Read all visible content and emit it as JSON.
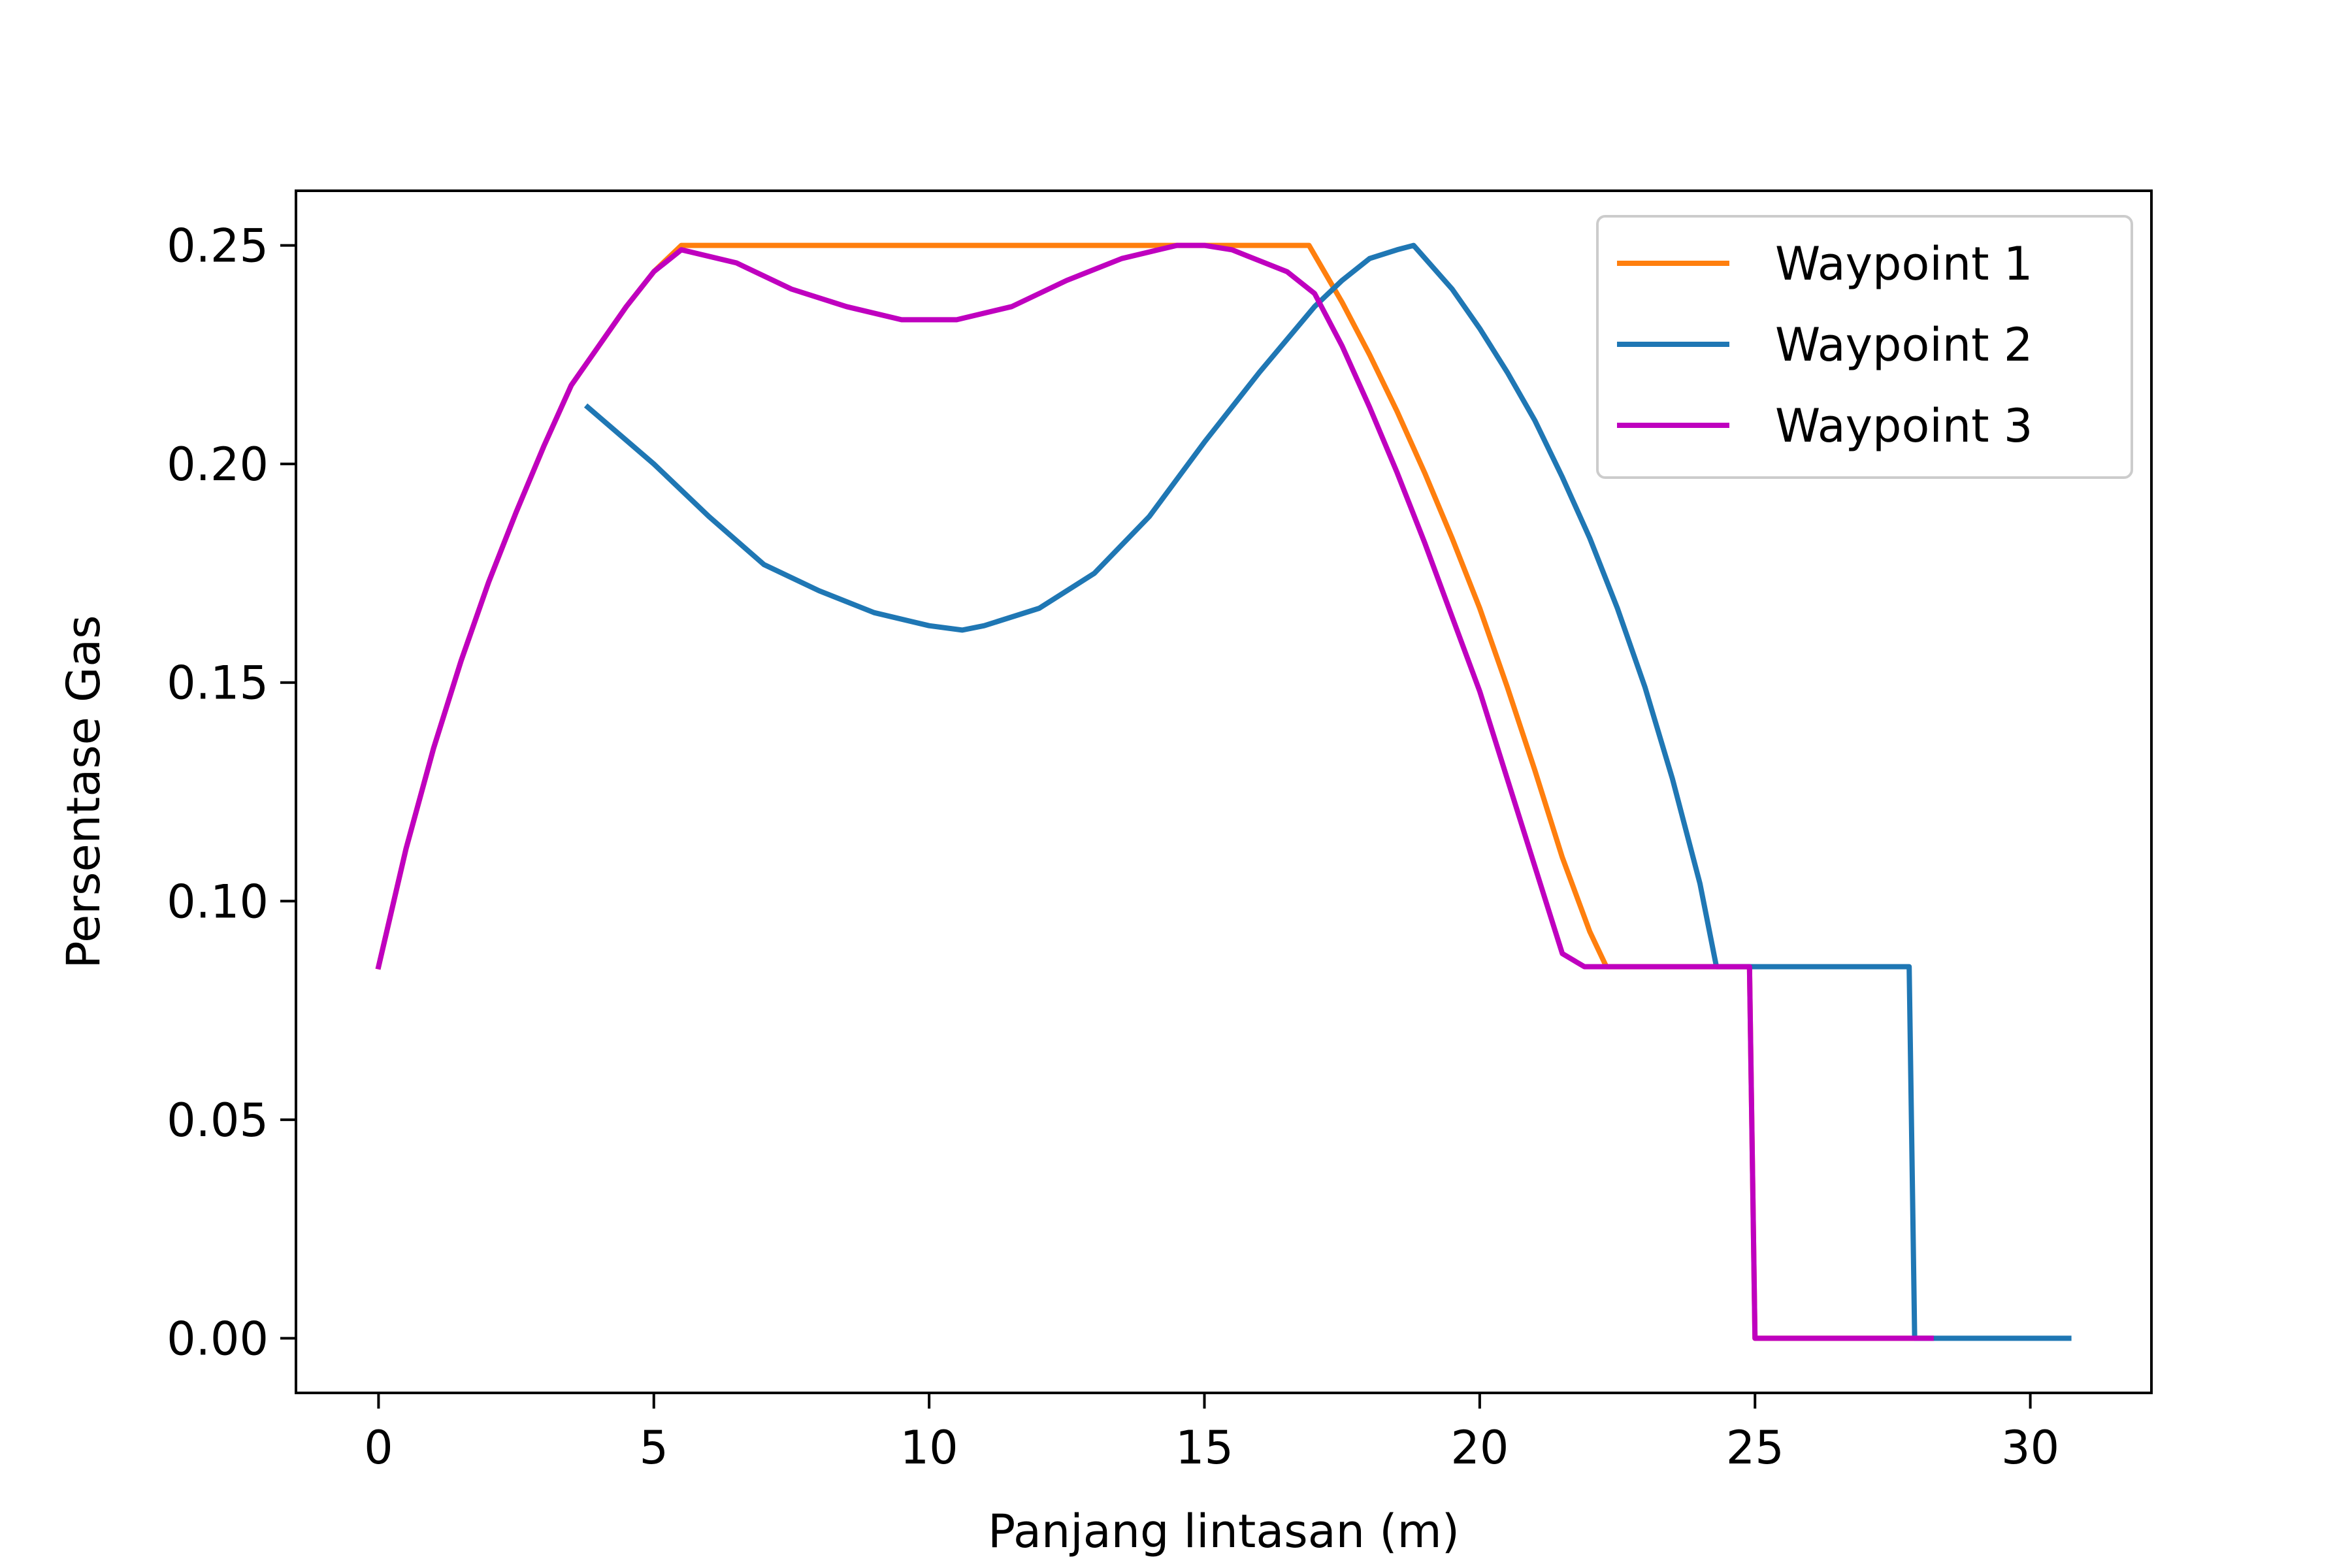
{
  "chart_data": {
    "type": "line",
    "title": "",
    "xlabel": "Panjang lintasan (m)",
    "ylabel": "Persentase Gas",
    "xlim": [
      -1.5,
      32.2
    ],
    "ylim": [
      -0.0125,
      0.2625
    ],
    "xticks": [
      0,
      5,
      10,
      15,
      20,
      25,
      30
    ],
    "xtick_labels": [
      "0",
      "5",
      "10",
      "15",
      "20",
      "25",
      "30"
    ],
    "yticks": [
      0.0,
      0.05,
      0.1,
      0.15,
      0.2,
      0.25
    ],
    "ytick_labels": [
      "0.00",
      "0.05",
      "0.10",
      "0.15",
      "0.20",
      "0.25"
    ],
    "grid": false,
    "legend_position": "top-right",
    "series": [
      {
        "name": "Waypoint 1",
        "color": "#ff7f0e",
        "x": [
          0,
          0.5,
          1.0,
          1.5,
          2.0,
          2.5,
          3.0,
          3.5,
          4.0,
          4.5,
          5.0,
          5.5,
          7,
          9,
          11,
          13,
          15,
          16.9,
          17.5,
          18.0,
          18.5,
          19.0,
          19.5,
          20.0,
          20.5,
          21.0,
          21.5,
          22.0,
          22.3,
          22.4,
          24.9,
          25.0,
          28.2
        ],
        "y": [
          0.085,
          0.112,
          0.135,
          0.155,
          0.173,
          0.189,
          0.204,
          0.218,
          0.227,
          0.236,
          0.244,
          0.25,
          0.25,
          0.25,
          0.25,
          0.25,
          0.25,
          0.25,
          0.237,
          0.225,
          0.212,
          0.198,
          0.183,
          0.167,
          0.149,
          0.13,
          0.11,
          0.093,
          0.085,
          0.085,
          0.085,
          0.0,
          0.0
        ]
      },
      {
        "name": "Waypoint 2",
        "color": "#1f77b4",
        "x": [
          3.8,
          5,
          6,
          7,
          8,
          9,
          10,
          10.6,
          11,
          12,
          13,
          14,
          15,
          16,
          17,
          17.5,
          18.0,
          18.5,
          18.8,
          19.5,
          20.0,
          20.5,
          21.0,
          21.5,
          22.0,
          22.5,
          23.0,
          23.5,
          24.0,
          24.3,
          25,
          27.8,
          27.9,
          30.7
        ],
        "y": [
          0.213,
          0.2,
          0.188,
          0.177,
          0.171,
          0.166,
          0.163,
          0.162,
          0.163,
          0.167,
          0.175,
          0.188,
          0.205,
          0.221,
          0.236,
          0.242,
          0.247,
          0.249,
          0.25,
          0.24,
          0.231,
          0.221,
          0.21,
          0.197,
          0.183,
          0.167,
          0.149,
          0.128,
          0.104,
          0.085,
          0.085,
          0.085,
          0.0,
          0.0
        ]
      },
      {
        "name": "Waypoint 3",
        "color": "#bf00bf",
        "x": [
          0,
          0.5,
          1.0,
          1.5,
          2.0,
          2.5,
          3.0,
          3.5,
          4.0,
          4.5,
          5.0,
          5.5,
          6.5,
          7.5,
          8.5,
          9.5,
          10.5,
          11.5,
          12.5,
          13.5,
          14.5,
          15.0,
          15.5,
          16.5,
          17.0,
          17.5,
          18.0,
          18.5,
          19.0,
          19.5,
          20.0,
          20.5,
          21.0,
          21.5,
          21.9,
          24.9,
          25.0,
          28.2
        ],
        "y": [
          0.085,
          0.112,
          0.135,
          0.155,
          0.173,
          0.189,
          0.204,
          0.218,
          0.227,
          0.236,
          0.244,
          0.249,
          0.246,
          0.24,
          0.236,
          0.233,
          0.233,
          0.236,
          0.242,
          0.247,
          0.25,
          0.25,
          0.249,
          0.244,
          0.239,
          0.227,
          0.213,
          0.198,
          0.182,
          0.165,
          0.148,
          0.128,
          0.108,
          0.088,
          0.085,
          0.085,
          0.0,
          0.0
        ]
      }
    ]
  }
}
